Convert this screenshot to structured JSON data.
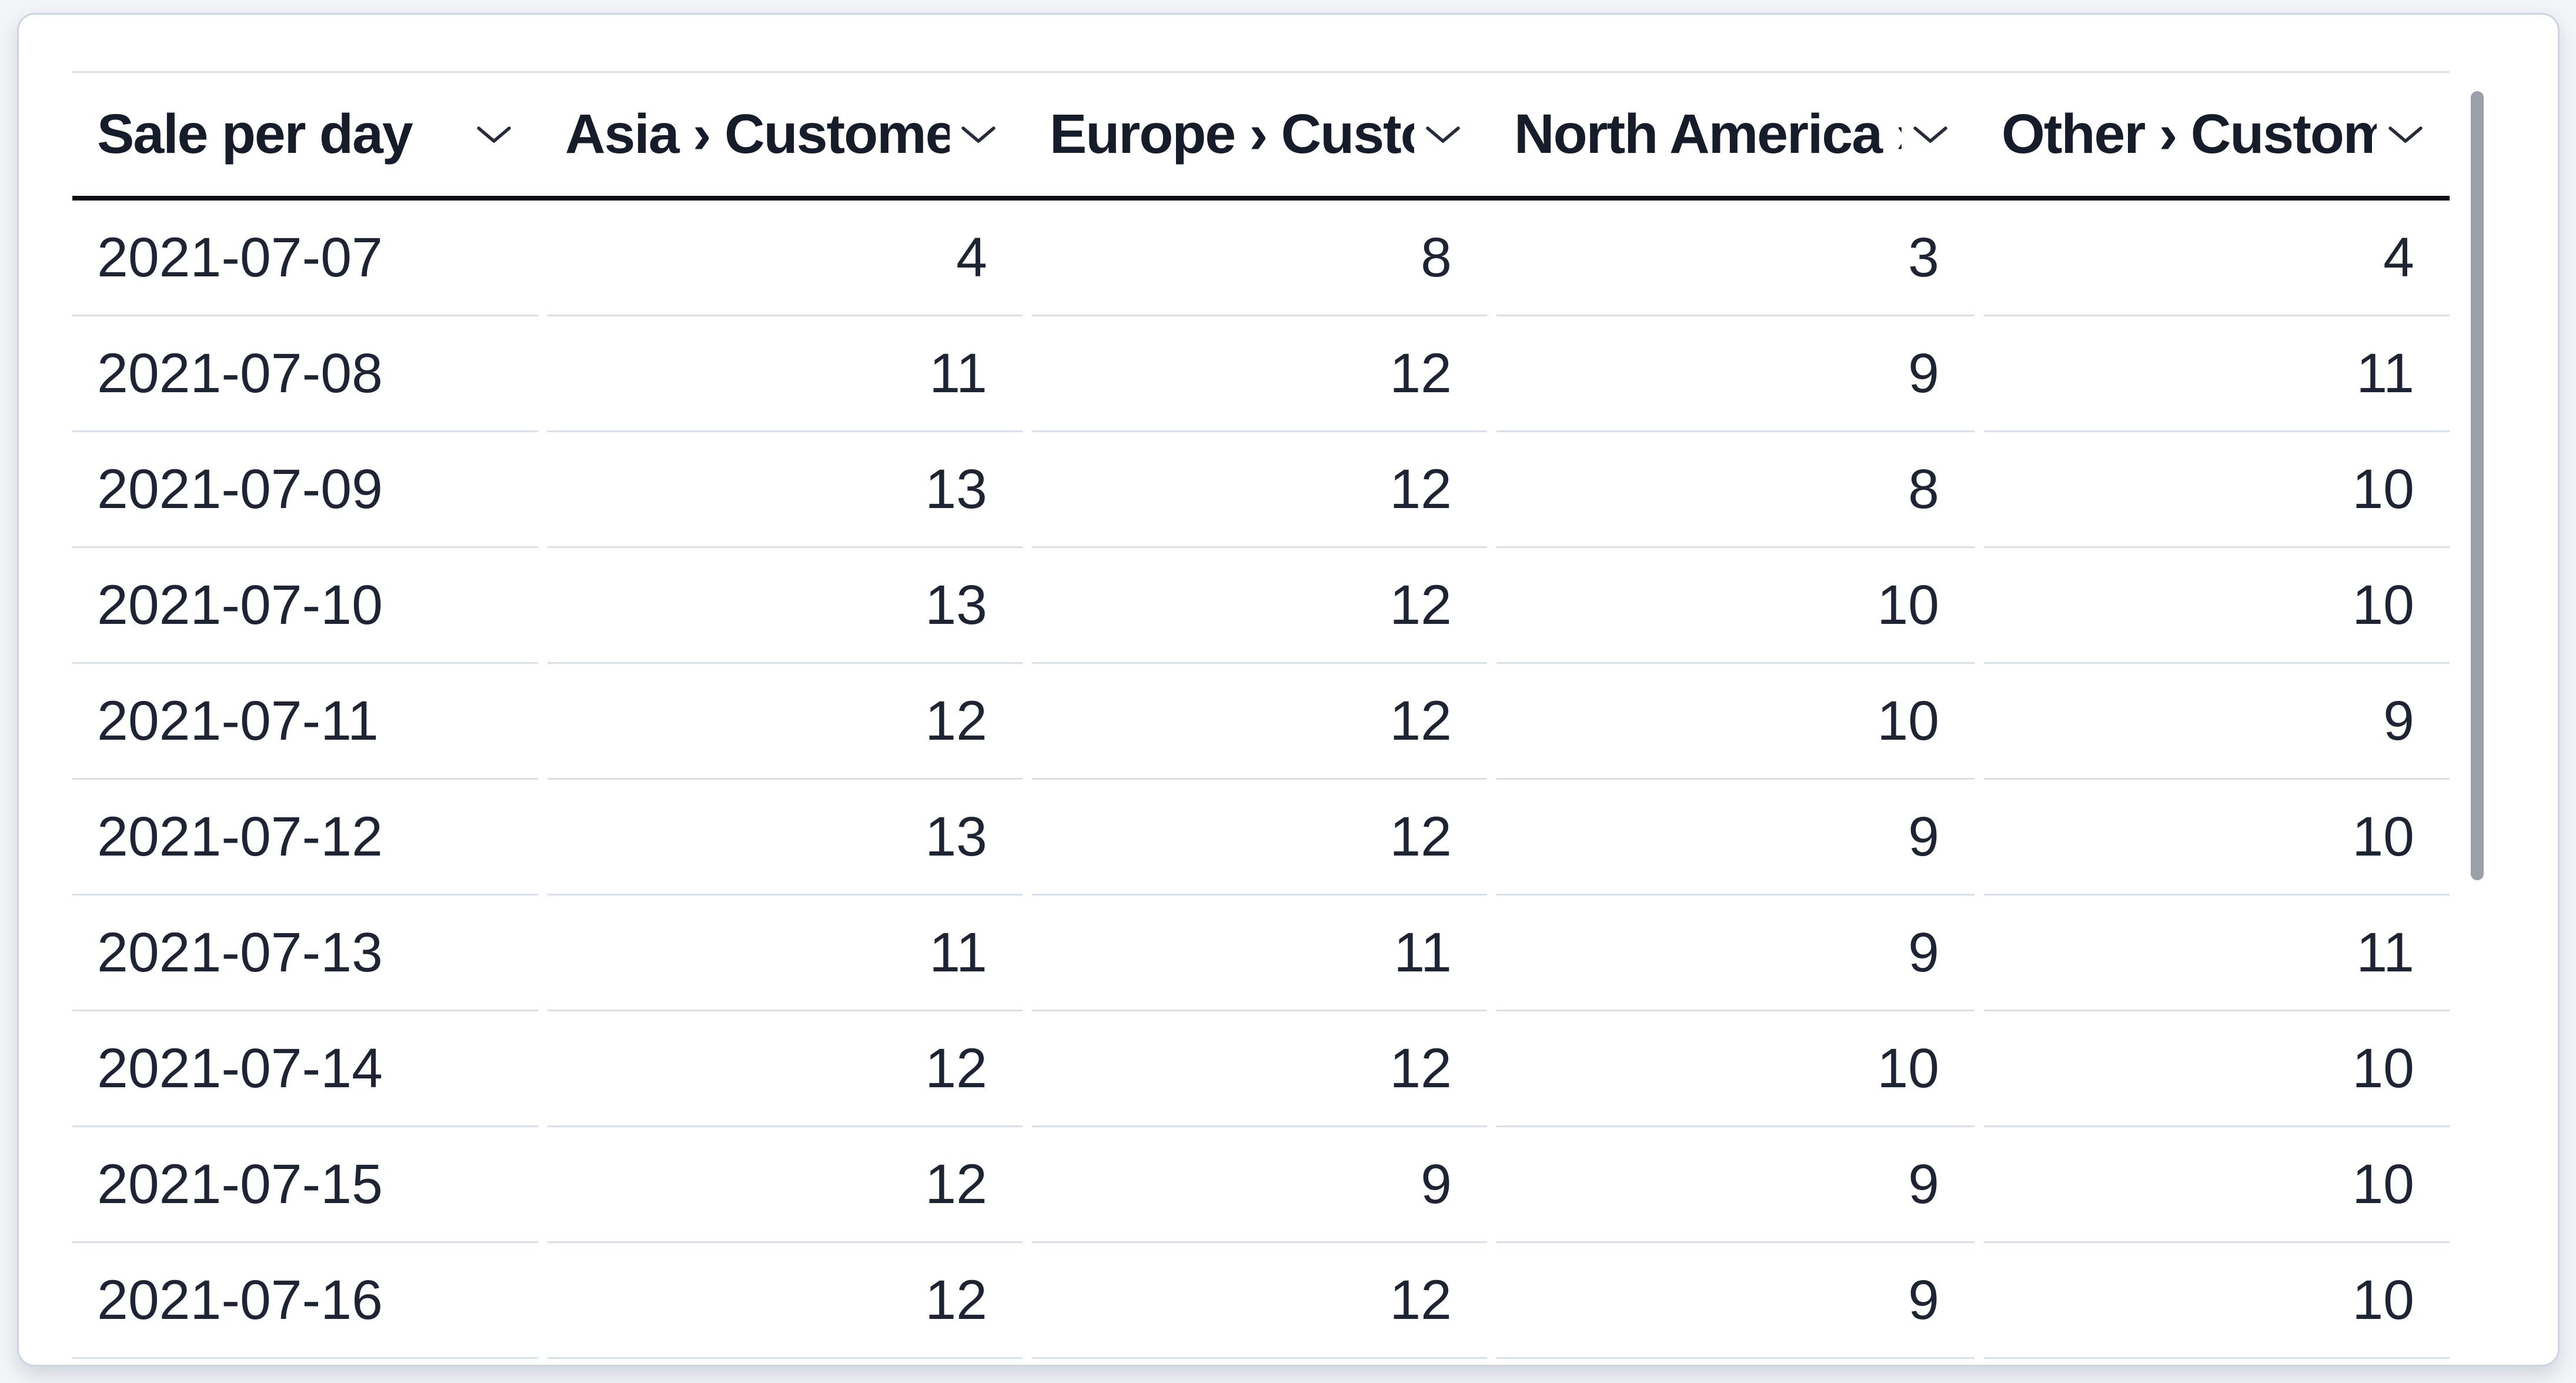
{
  "table": {
    "title": "Sale per day",
    "columns": [
      {
        "label": "Sale per day",
        "type": "date"
      },
      {
        "label": "Asia › Customers",
        "type": "number"
      },
      {
        "label": "Europe › Customers",
        "type": "number"
      },
      {
        "label": "North America › Customers",
        "type": "number"
      },
      {
        "label": "Other › Customers",
        "type": "number"
      }
    ],
    "rows": [
      [
        "2021-07-07",
        "4",
        "8",
        "3",
        "4"
      ],
      [
        "2021-07-08",
        "11",
        "12",
        "9",
        "11"
      ],
      [
        "2021-07-09",
        "13",
        "12",
        "8",
        "10"
      ],
      [
        "2021-07-10",
        "13",
        "12",
        "10",
        "10"
      ],
      [
        "2021-07-11",
        "12",
        "12",
        "10",
        "9"
      ],
      [
        "2021-07-12",
        "13",
        "12",
        "9",
        "10"
      ],
      [
        "2021-07-13",
        "11",
        "11",
        "9",
        "11"
      ],
      [
        "2021-07-14",
        "12",
        "12",
        "10",
        "10"
      ],
      [
        "2021-07-15",
        "12",
        "9",
        "9",
        "10"
      ],
      [
        "2021-07-16",
        "12",
        "12",
        "9",
        "10"
      ]
    ]
  },
  "icons": {
    "header_sort": "chevron-down-icon"
  },
  "colors": {
    "page_background": "#f4f5f7",
    "card_background": "#ffffff",
    "card_border": "#ccd5e1",
    "header_underline": "#0c0e15",
    "row_divider": "#d9e0eb",
    "header_text": "#171c2a",
    "body_text": "#1e2433",
    "scrollbar_thumb": "#9b9fa7"
  }
}
